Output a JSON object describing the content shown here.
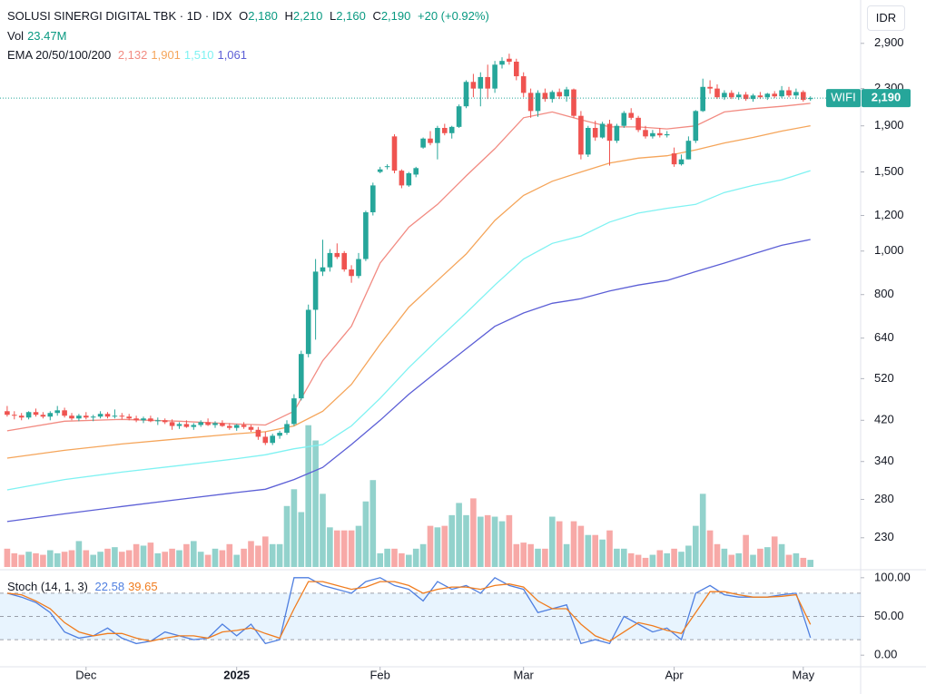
{
  "chart_data": {
    "type": "candlestick",
    "title": "SOLUSI SINERGI DIGITAL TBK · 1D · IDX",
    "ohlc": [
      {
        "key": "O",
        "value": 2180,
        "label": "2,180"
      },
      {
        "key": "H",
        "value": 2210,
        "label": "2,210"
      },
      {
        "key": "L",
        "value": 2160,
        "label": "2,160"
      },
      {
        "key": "C",
        "value": 2190,
        "label": "2,190"
      }
    ],
    "change": "+20 (+0.92%)",
    "symbol": "WIFI",
    "currency": "IDR",
    "log_scale": true,
    "up_color": "#26a69a",
    "down_color": "#ef5350",
    "xlim": [
      -1,
      119
    ],
    "xticks": [
      {
        "value": 11,
        "label": "Dec"
      },
      {
        "value": 32,
        "label": "2025"
      },
      {
        "value": 52,
        "label": "Feb"
      },
      {
        "value": 72,
        "label": "Mar"
      },
      {
        "value": 93,
        "label": "Apr"
      },
      {
        "value": 111,
        "label": "May"
      }
    ],
    "ylim": [
      198,
      3300
    ],
    "yticks": [
      230,
      280,
      340,
      420,
      520,
      640,
      800,
      {
        "value": 1000,
        "label": "1,000"
      },
      {
        "value": 1200,
        "label": "1,200"
      },
      {
        "value": 1500,
        "label": "1,500"
      },
      {
        "value": 1900,
        "label": "1,900"
      },
      {
        "value": 2300,
        "label": "2,300"
      },
      {
        "value": 2900,
        "label": "2,900"
      }
    ],
    "candles": [
      [
        440,
        452,
        428,
        432
      ],
      [
        432,
        440,
        422,
        430
      ],
      [
        430,
        436,
        420,
        426
      ],
      [
        426,
        440,
        422,
        438
      ],
      [
        438,
        446,
        428,
        432
      ],
      [
        432,
        438,
        424,
        428
      ],
      [
        428,
        440,
        420,
        436
      ],
      [
        436,
        452,
        430,
        442
      ],
      [
        442,
        448,
        426,
        430
      ],
      [
        430,
        436,
        420,
        424
      ],
      [
        424,
        434,
        418,
        430
      ],
      [
        430,
        438,
        422,
        426
      ],
      [
        426,
        432,
        418,
        428
      ],
      [
        428,
        440,
        424,
        434
      ],
      [
        434,
        438,
        424,
        428
      ],
      [
        428,
        444,
        424,
        430
      ],
      [
        430,
        436,
        422,
        428
      ],
      [
        428,
        434,
        420,
        424
      ],
      [
        424,
        430,
        416,
        420
      ],
      [
        420,
        428,
        414,
        424
      ],
      [
        424,
        430,
        416,
        418
      ],
      [
        418,
        426,
        410,
        420
      ],
      [
        420,
        424,
        412,
        416
      ],
      [
        416,
        422,
        400,
        408
      ],
      [
        408,
        416,
        402,
        412
      ],
      [
        412,
        420,
        404,
        406
      ],
      [
        406,
        414,
        400,
        410
      ],
      [
        410,
        420,
        406,
        416
      ],
      [
        416,
        424,
        408,
        410
      ],
      [
        410,
        418,
        404,
        414
      ],
      [
        414,
        420,
        406,
        408
      ],
      [
        408,
        414,
        400,
        404
      ],
      [
        404,
        412,
        398,
        410
      ],
      [
        410,
        416,
        402,
        406
      ],
      [
        406,
        410,
        396,
        400
      ],
      [
        400,
        406,
        380,
        386
      ],
      [
        386,
        396,
        370,
        374
      ],
      [
        374,
        392,
        370,
        388
      ],
      [
        388,
        398,
        382,
        394
      ],
      [
        394,
        420,
        390,
        412
      ],
      [
        412,
        480,
        408,
        470
      ],
      [
        470,
        600,
        465,
        590
      ],
      [
        590,
        760,
        580,
        740
      ],
      [
        740,
        960,
        635,
        900
      ],
      [
        900,
        1060,
        880,
        920
      ],
      [
        920,
        1010,
        900,
        990
      ],
      [
        990,
        1040,
        960,
        970
      ],
      [
        990,
        1000,
        900,
        910
      ],
      [
        910,
        930,
        850,
        880
      ],
      [
        880,
        990,
        870,
        960
      ],
      [
        960,
        1230,
        950,
        1220
      ],
      [
        1220,
        1420,
        1200,
        1400
      ],
      [
        1500,
        1540,
        1490,
        1520
      ],
      [
        1540,
        1560,
        1520,
        1545
      ],
      [
        1800,
        1820,
        1490,
        1510
      ],
      [
        1510,
        1520,
        1380,
        1400
      ],
      [
        1400,
        1500,
        1390,
        1490
      ],
      [
        1480,
        1540,
        1460,
        1530
      ],
      [
        1700,
        1790,
        1690,
        1780
      ],
      [
        1780,
        1850,
        1720,
        1740
      ],
      [
        1740,
        1900,
        1600,
        1880
      ],
      [
        1880,
        1920,
        1810,
        1830
      ],
      [
        1830,
        1900,
        1780,
        1890
      ],
      [
        1890,
        2120,
        1880,
        2100
      ],
      [
        2100,
        2400,
        2080,
        2380
      ],
      [
        2380,
        2480,
        2200,
        2300
      ],
      [
        2300,
        2500,
        2100,
        2440
      ],
      [
        2440,
        2600,
        2180,
        2300
      ],
      [
        2300,
        2650,
        2250,
        2600
      ],
      [
        2600,
        2700,
        2550,
        2650
      ],
      [
        2680,
        2750,
        2600,
        2640
      ],
      [
        2640,
        2680,
        2400,
        2450
      ],
      [
        2450,
        2500,
        2200,
        2250
      ],
      [
        2250,
        2300,
        1980,
        2050
      ],
      [
        2050,
        2280,
        1990,
        2250
      ],
      [
        2250,
        2300,
        2150,
        2180
      ],
      [
        2180,
        2280,
        2140,
        2260
      ],
      [
        2260,
        2300,
        2180,
        2210
      ],
      [
        2210,
        2320,
        2150,
        2290
      ],
      [
        2290,
        2300,
        1980,
        2000
      ],
      [
        2000,
        2050,
        1600,
        1640
      ],
      [
        1640,
        1900,
        1620,
        1880
      ],
      [
        1880,
        1950,
        1760,
        1790
      ],
      [
        1790,
        1940,
        1780,
        1920
      ],
      [
        1920,
        1960,
        1550,
        1760
      ],
      [
        1760,
        1920,
        1740,
        1900
      ],
      [
        1900,
        2050,
        1880,
        2030
      ],
      [
        2030,
        2080,
        1960,
        1980
      ],
      [
        1980,
        2000,
        1840,
        1860
      ],
      [
        1860,
        1900,
        1780,
        1800
      ],
      [
        1800,
        1860,
        1780,
        1830
      ],
      [
        1830,
        1880,
        1790,
        1810
      ],
      [
        1810,
        1850,
        1790,
        1820
      ],
      [
        1650,
        1700,
        1540,
        1560
      ],
      [
        1560,
        1640,
        1550,
        1600
      ],
      [
        1600,
        1800,
        1600,
        1760
      ],
      [
        1760,
        2060,
        1740,
        2050
      ],
      [
        2050,
        2420,
        2040,
        2320
      ],
      [
        2320,
        2400,
        2240,
        2300
      ],
      [
        2300,
        2350,
        2180,
        2200
      ],
      [
        2200,
        2280,
        2170,
        2250
      ],
      [
        2250,
        2280,
        2180,
        2200
      ],
      [
        2200,
        2260,
        2170,
        2230
      ],
      [
        2230,
        2260,
        2160,
        2180
      ],
      [
        2180,
        2240,
        2150,
        2220
      ],
      [
        2220,
        2260,
        2180,
        2200
      ],
      [
        2200,
        2250,
        2170,
        2240
      ],
      [
        2240,
        2270,
        2190,
        2210
      ],
      [
        2210,
        2330,
        2190,
        2280
      ],
      [
        2280,
        2320,
        2200,
        2220
      ],
      [
        2220,
        2300,
        2180,
        2260
      ],
      [
        2260,
        2280,
        2150,
        2170
      ],
      [
        2180,
        2210,
        2160,
        2190
      ]
    ],
    "volume": {
      "label": "Vol",
      "value_label": "23.47M",
      "ylim": [
        0,
        1800
      ],
      "values": [
        60,
        45,
        40,
        50,
        45,
        40,
        55,
        45,
        50,
        55,
        85,
        55,
        40,
        50,
        60,
        65,
        50,
        55,
        75,
        70,
        80,
        45,
        50,
        60,
        55,
        75,
        85,
        50,
        40,
        60,
        55,
        75,
        40,
        60,
        85,
        70,
        100,
        75,
        75,
        200,
        255,
        180,
        465,
        415,
        240,
        130,
        120,
        120,
        120,
        135,
        215,
        285,
        45,
        60,
        60,
        45,
        40,
        60,
        75,
        135,
        130,
        135,
        170,
        210,
        170,
        225,
        165,
        170,
        165,
        150,
        170,
        75,
        80,
        75,
        60,
        60,
        165,
        150,
        75,
        150,
        135,
        105,
        105,
        90,
        120,
        60,
        60,
        45,
        40,
        30,
        40,
        55,
        45,
        60,
        50,
        70,
        135,
        240,
        120,
        75,
        60,
        40,
        45,
        105,
        40,
        60,
        65,
        100,
        75,
        40,
        45,
        30,
        23.47
      ]
    },
    "ema_title": "EMA 20/50/100/200",
    "ema": [
      {
        "color": "#f28b82",
        "value_label": "2,132",
        "x": [
          0,
          8,
          16,
          24,
          32,
          36,
          40,
          44,
          48,
          52,
          56,
          60,
          64,
          68,
          72,
          76,
          80,
          84,
          88,
          92,
          96,
          100,
          104,
          108,
          112
        ],
        "values": [
          398,
          418,
          422,
          418,
          412,
          410,
          440,
          570,
          680,
          940,
          1130,
          1270,
          1470,
          1690,
          1980,
          2040,
          1960,
          1890,
          1890,
          1870,
          1900,
          2040,
          2075,
          2100,
          2132
        ]
      },
      {
        "color": "#f5a55a",
        "value_label": "1,901",
        "x": [
          0,
          8,
          16,
          24,
          32,
          36,
          40,
          44,
          48,
          52,
          56,
          60,
          64,
          68,
          72,
          76,
          80,
          84,
          88,
          92,
          96,
          100,
          104,
          108,
          112
        ],
        "values": [
          346,
          360,
          372,
          382,
          392,
          396,
          408,
          440,
          505,
          620,
          750,
          860,
          985,
          1170,
          1330,
          1430,
          1500,
          1570,
          1610,
          1630,
          1680,
          1740,
          1790,
          1850,
          1901
        ]
      },
      {
        "color": "#7ff2f2",
        "value_label": "1,510",
        "x": [
          0,
          8,
          16,
          24,
          32,
          36,
          40,
          44,
          48,
          52,
          56,
          60,
          64,
          68,
          72,
          76,
          80,
          84,
          88,
          92,
          96,
          100,
          104,
          108,
          112
        ],
        "values": [
          294,
          310,
          322,
          333,
          345,
          352,
          363,
          371,
          408,
          470,
          550,
          634,
          728,
          840,
          960,
          1040,
          1080,
          1160,
          1215,
          1245,
          1270,
          1350,
          1400,
          1440,
          1510
        ]
      },
      {
        "color": "#5c5fd6",
        "value_label": "1,061",
        "x": [
          0,
          8,
          16,
          24,
          32,
          36,
          40,
          44,
          48,
          52,
          56,
          60,
          64,
          68,
          72,
          76,
          80,
          84,
          88,
          92,
          96,
          100,
          104,
          108,
          112
        ],
        "values": [
          250,
          260,
          270,
          280,
          290,
          295,
          310,
          330,
          371,
          420,
          480,
          540,
          606,
          680,
          728,
          765,
          783,
          815,
          840,
          860,
          900,
          940,
          985,
          1030,
          1061
        ]
      }
    ],
    "stoch": {
      "title": "Stoch (14, 1, 3)",
      "ylim": [
        -15,
        108
      ],
      "yticks": [
        {
          "value": 100,
          "label": "100.00"
        },
        {
          "value": 50,
          "label": "50.00"
        },
        {
          "value": 0,
          "label": "0.00"
        }
      ],
      "bands": [
        80,
        50,
        20
      ],
      "x": [
        0,
        2,
        4,
        6,
        8,
        10,
        12,
        14,
        16,
        18,
        20,
        22,
        24,
        26,
        28,
        30,
        32,
        34,
        36,
        38,
        40,
        42,
        44,
        46,
        48,
        50,
        52,
        54,
        56,
        58,
        60,
        62,
        64,
        66,
        68,
        70,
        72,
        74,
        76,
        78,
        80,
        82,
        84,
        86,
        88,
        90,
        92,
        94,
        96,
        98,
        100,
        102,
        104,
        106,
        108,
        110,
        112
      ],
      "k": {
        "color": "#4f7fe0",
        "value_label": "22.58",
        "values": [
          80,
          75,
          68,
          55,
          30,
          22,
          25,
          35,
          22,
          15,
          18,
          30,
          25,
          20,
          22,
          40,
          25,
          40,
          15,
          20,
          100,
          100,
          90,
          85,
          80,
          95,
          100,
          90,
          85,
          70,
          95,
          85,
          90,
          80,
          100,
          90,
          85,
          55,
          60,
          65,
          15,
          20,
          15,
          50,
          40,
          30,
          35,
          20,
          80,
          90,
          78,
          75,
          75,
          75,
          78,
          80,
          22.58
        ]
      },
      "d": {
        "color": "#f07c1e",
        "value_label": "39.65",
        "values": [
          80,
          78,
          70,
          60,
          42,
          30,
          25,
          28,
          28,
          22,
          18,
          22,
          25,
          25,
          22,
          30,
          32,
          35,
          28,
          22,
          60,
          95,
          95,
          90,
          85,
          88,
          95,
          95,
          90,
          80,
          85,
          88,
          88,
          85,
          90,
          92,
          88,
          70,
          60,
          60,
          40,
          25,
          18,
          30,
          42,
          38,
          32,
          28,
          55,
          82,
          82,
          78,
          75,
          75,
          76,
          78,
          39.65
        ]
      }
    }
  }
}
